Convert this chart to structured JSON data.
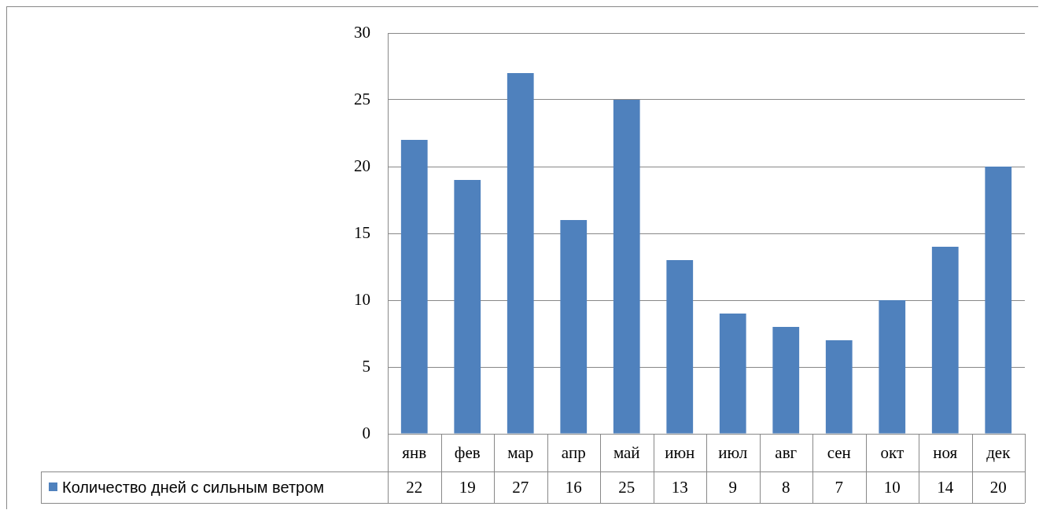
{
  "chart_data": {
    "type": "bar",
    "categories": [
      "янв",
      "фев",
      "мар",
      "апр",
      "май",
      "июн",
      "июл",
      "авг",
      "сен",
      "окт",
      "ноя",
      "дек"
    ],
    "series": [
      {
        "name": "Количество дней с сильным ветром",
        "color": "#4f81bd",
        "values": [
          22,
          19,
          27,
          16,
          25,
          13,
          9,
          8,
          7,
          10,
          14,
          20
        ]
      }
    ],
    "ylim": [
      0,
      30
    ],
    "yticks": [
      0,
      5,
      10,
      15,
      20,
      25,
      30
    ],
    "grid": "y",
    "legend": "bottom",
    "data_labels": true
  }
}
